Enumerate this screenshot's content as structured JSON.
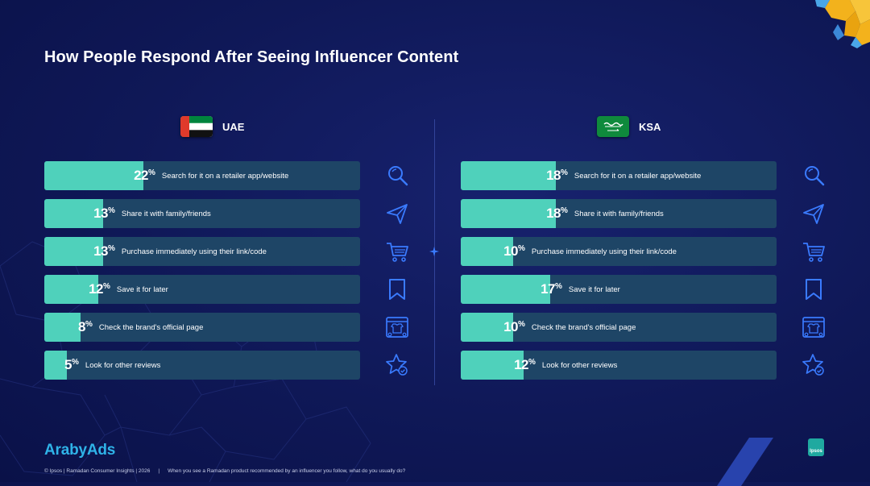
{
  "title": "How People Respond After Seeing Influencer Content",
  "colors": {
    "background": "#0f1857",
    "bar_track": "#1e4566",
    "bar_fill": "#4fd1bb",
    "icon": "#3a7bff",
    "logo": "#2fb3e8"
  },
  "chart_data": [
    {
      "type": "bar",
      "title": "UAE",
      "unit": "%",
      "categories": [
        "Search for it on a retailer app/website",
        "Share it with family/friends",
        "Purchase immediately using their link/code",
        "Save it for later",
        "Check the brand's official page",
        "Look for other reviews"
      ],
      "values": [
        22,
        13,
        13,
        12,
        8,
        5
      ],
      "icons": [
        "search-icon",
        "send-icon",
        "cart-icon",
        "bookmark-icon",
        "shop-icon",
        "star-check-icon"
      ],
      "xlim": [
        0,
        70
      ]
    },
    {
      "type": "bar",
      "title": "KSA",
      "unit": "%",
      "categories": [
        "Search for it on a retailer app/website",
        "Share it with family/friends",
        "Purchase immediately using their link/code",
        "Save it for later",
        "Check the brand's official page",
        "Look for other reviews"
      ],
      "values": [
        18,
        18,
        10,
        17,
        10,
        12
      ],
      "icons": [
        "search-icon",
        "send-icon",
        "cart-icon",
        "bookmark-icon",
        "shop-icon",
        "star-check-icon"
      ],
      "xlim": [
        0,
        60
      ]
    }
  ],
  "logo": "ArabyAds",
  "footer": {
    "source": "© Ipsos | Ramadan Consumer Insights | 2026",
    "separator": "|",
    "question": "When you see a Ramadan product recommended by an influencer you follow, what do you usually do?"
  },
  "ipsos_label": "Ipsos"
}
